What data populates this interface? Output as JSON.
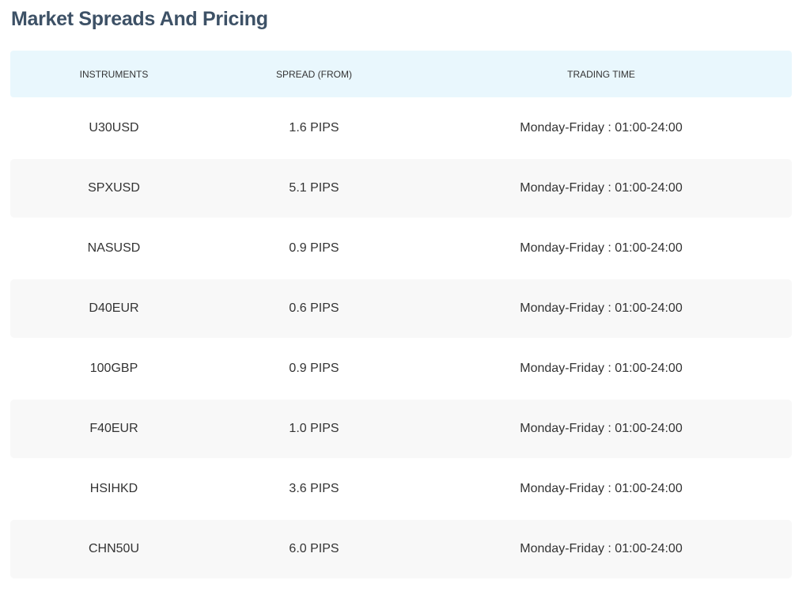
{
  "title": "Market Spreads And Pricing",
  "headers": [
    "INSTRUMENTS",
    "SPREAD (FROM)",
    "TRADING TIME"
  ],
  "rows": [
    {
      "instrument": "U30USD",
      "spread": "1.6 PIPS",
      "time": "Monday-Friday : 01:00-24:00"
    },
    {
      "instrument": "SPXUSD",
      "spread": "5.1 PIPS",
      "time": "Monday-Friday : 01:00-24:00"
    },
    {
      "instrument": "NASUSD",
      "spread": "0.9 PIPS",
      "time": "Monday-Friday : 01:00-24:00"
    },
    {
      "instrument": "D40EUR",
      "spread": "0.6 PIPS",
      "time": "Monday-Friday : 01:00-24:00"
    },
    {
      "instrument": "100GBP",
      "spread": "0.9 PIPS",
      "time": "Monday-Friday : 01:00-24:00"
    },
    {
      "instrument": "F40EUR",
      "spread": "1.0 PIPS",
      "time": "Monday-Friday : 01:00-24:00"
    },
    {
      "instrument": "HSIHKD",
      "spread": "3.6 PIPS",
      "time": "Monday-Friday : 01:00-24:00"
    },
    {
      "instrument": "CHN50U",
      "spread": "6.0 PIPS",
      "time": "Monday-Friday : 01:00-24:00"
    }
  ]
}
